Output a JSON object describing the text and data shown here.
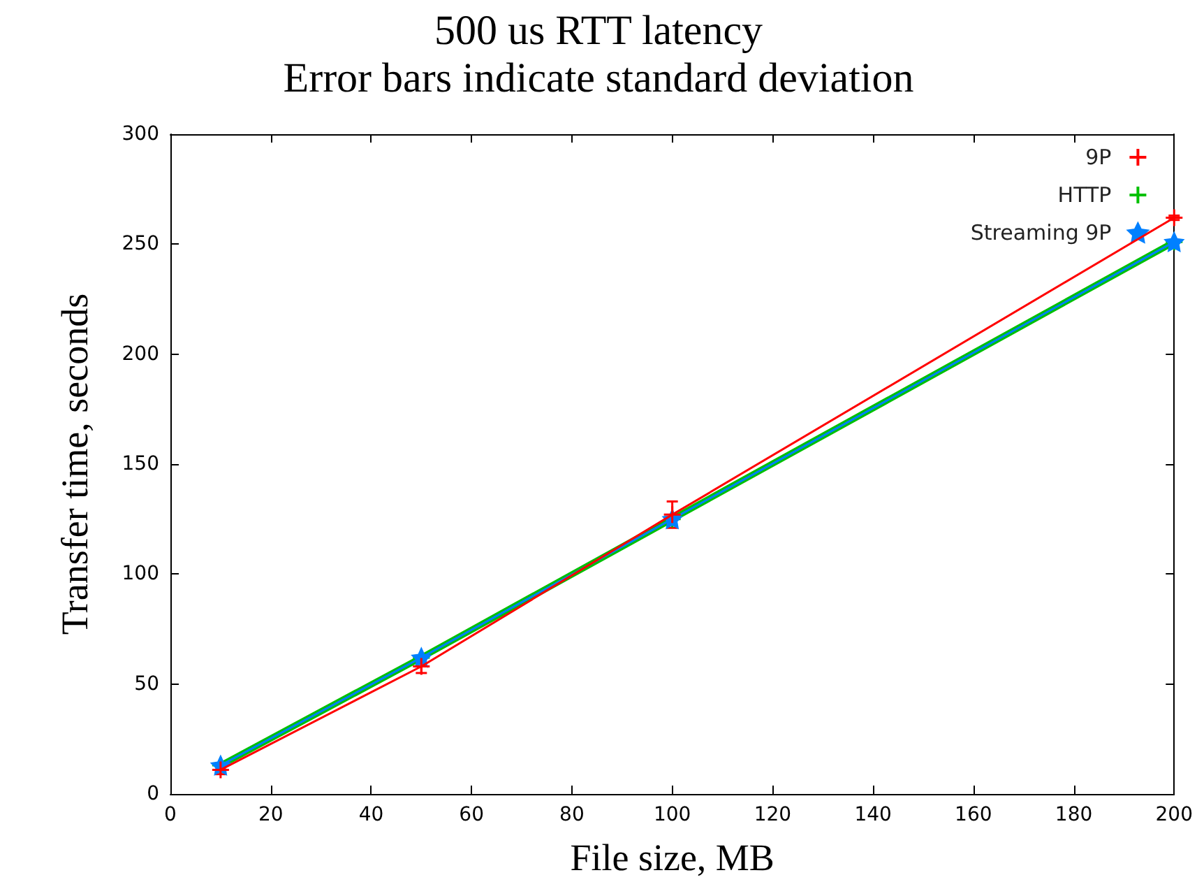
{
  "chart_data": {
    "type": "line",
    "title": "500 us RTT latency",
    "subtitle": "Error bars indicate standard deviation",
    "xlabel": "File size, MB",
    "ylabel": "Transfer time, seconds",
    "x": [
      10,
      50,
      100,
      200
    ],
    "series": [
      {
        "name": "9P",
        "color": "#ff0000",
        "marker": "cross",
        "values": [
          11,
          58,
          127,
          262
        ],
        "errors": [
          2,
          3,
          6,
          1
        ]
      },
      {
        "name": "HTTP",
        "color": "#00c000",
        "marker": "cross",
        "values": [
          13,
          62,
          125,
          251
        ],
        "errors": [
          null,
          null,
          null,
          null
        ]
      },
      {
        "name": "Streaming 9P",
        "color": "#0080ff",
        "marker": "star",
        "values": [
          13,
          62,
          125,
          251
        ],
        "errors": [
          null,
          null,
          null,
          null
        ]
      }
    ],
    "xlim": [
      0,
      200
    ],
    "xticks": [
      0,
      20,
      40,
      60,
      80,
      100,
      120,
      140,
      160,
      180,
      200
    ],
    "ylim": [
      0,
      300
    ],
    "yticks": [
      0,
      50,
      100,
      150,
      200,
      250,
      300
    ],
    "grid": false,
    "legend": "top right",
    "line_style": "solid"
  }
}
